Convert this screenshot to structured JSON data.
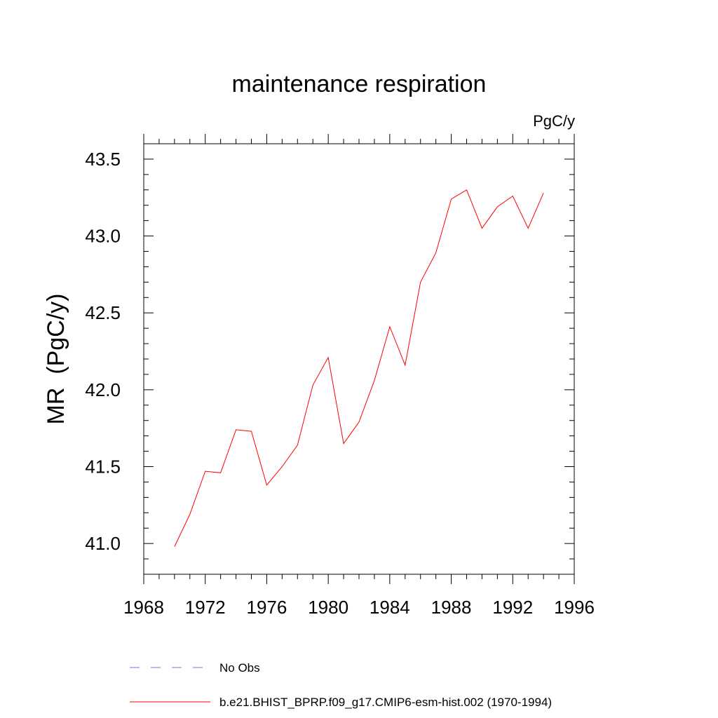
{
  "chart_data": {
    "type": "line",
    "title": "maintenance respiration",
    "units_label": "PgC/y",
    "xlabel": "",
    "ylabel": "MR  (PgC/y)",
    "xlim": [
      1968,
      1996
    ],
    "ylim": [
      40.8,
      43.6
    ],
    "x_ticks": [
      1968,
      1972,
      1976,
      1980,
      1984,
      1988,
      1992,
      1996
    ],
    "y_ticks": [
      "41.0",
      "41.5",
      "42.0",
      "42.5",
      "43.0",
      "43.5"
    ],
    "grid": false,
    "series": [
      {
        "name": "b.e21.BHIST_BPRP.f09_g17.CMIP6-esm-hist.002 (1970-1994)",
        "color": "#ff0000",
        "x": [
          1970,
          1971,
          1972,
          1973,
          1974,
          1975,
          1976,
          1977,
          1978,
          1979,
          1980,
          1981,
          1982,
          1983,
          1984,
          1985,
          1986,
          1987,
          1988,
          1989,
          1990,
          1991,
          1992,
          1993,
          1994
        ],
        "values": [
          40.98,
          41.19,
          41.47,
          41.46,
          41.74,
          41.73,
          41.38,
          41.5,
          41.64,
          42.03,
          42.21,
          41.65,
          41.79,
          42.06,
          42.41,
          42.16,
          42.7,
          42.89,
          43.24,
          43.3,
          43.05,
          43.19,
          43.26,
          43.05,
          43.28
        ]
      }
    ],
    "legend": [
      {
        "label": "No Obs",
        "color": "#7b6fd6",
        "style": "dashed"
      },
      {
        "label": "b.e21.BHIST_BPRP.f09_g17.CMIP6-esm-hist.002 (1970-1994)",
        "color": "#ff0000",
        "style": "solid"
      }
    ]
  }
}
